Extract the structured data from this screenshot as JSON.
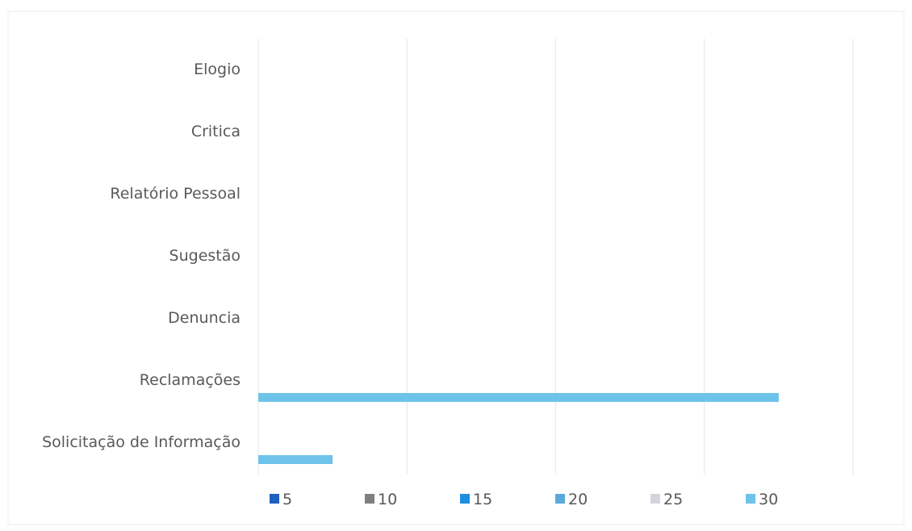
{
  "chart_data": {
    "type": "bar",
    "orientation": "horizontal",
    "categories": [
      "Elogio",
      "Critica",
      "Relatório Pessoal",
      "Sugestão",
      "Denuncia",
      "Reclamações",
      "Solicitação de Informação"
    ],
    "series": [
      {
        "name": "5",
        "color": "#1f5fbf",
        "values": [
          0,
          0,
          0,
          0,
          0,
          0,
          0
        ]
      },
      {
        "name": "10",
        "color": "#7f7f7f",
        "values": [
          0,
          0,
          0,
          0,
          0,
          0,
          0
        ]
      },
      {
        "name": "15",
        "color": "#1d8ee0",
        "values": [
          0,
          0,
          0,
          0,
          0,
          0,
          0
        ]
      },
      {
        "name": "20",
        "color": "#5aa9dc",
        "values": [
          0,
          0,
          0,
          0,
          0,
          0,
          0
        ]
      },
      {
        "name": "25",
        "color": "#d4d4dc",
        "values": [
          0,
          0,
          0,
          0,
          0,
          0,
          0
        ]
      },
      {
        "name": "30",
        "color": "#6ec3ea",
        "values": [
          0,
          0,
          0,
          0,
          0,
          35,
          5
        ]
      }
    ],
    "xlim": [
      0,
      40
    ],
    "grid": true,
    "legend_position": "bottom",
    "title": "",
    "xlabel": "",
    "ylabel": ""
  }
}
